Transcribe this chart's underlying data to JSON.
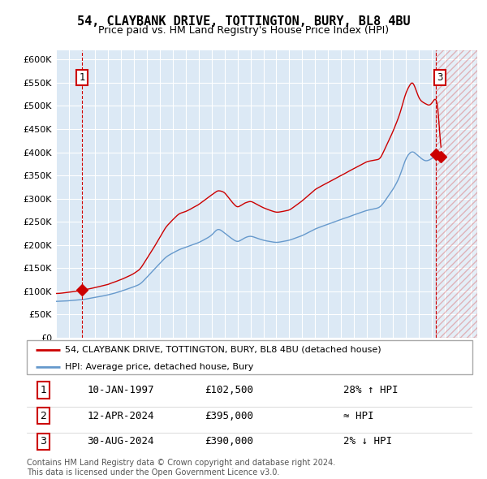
{
  "title": "54, CLAYBANK DRIVE, TOTTINGTON, BURY, BL8 4BU",
  "subtitle": "Price paid vs. HM Land Registry's House Price Index (HPI)",
  "legend_line1": "54, CLAYBANK DRIVE, TOTTINGTON, BURY, BL8 4BU (detached house)",
  "legend_line2": "HPI: Average price, detached house, Bury",
  "table_rows": [
    [
      "1",
      "10-JAN-1997",
      "£102,500",
      "28% ↑ HPI"
    ],
    [
      "2",
      "12-APR-2024",
      "£395,000",
      "≈ HPI"
    ],
    [
      "3",
      "30-AUG-2024",
      "£390,000",
      "2% ↓ HPI"
    ]
  ],
  "footer": "Contains HM Land Registry data © Crown copyright and database right 2024.\nThis data is licensed under the Open Government Licence v3.0.",
  "hpi_color": "#6699cc",
  "price_color": "#cc0000",
  "bg_color": "#dce9f5",
  "ylim": [
    0,
    620000
  ],
  "xlim_start": 1995.0,
  "xlim_end": 2027.5,
  "sale1_x": 1997.03,
  "sale1_y": 102500,
  "sale2_x": 2024.28,
  "sale2_y": 395000,
  "sale3_x": 2024.66,
  "sale3_y": 390000,
  "vline1_x": 1997.03,
  "vline2_x": 2024.28,
  "future_x": 2024.28
}
